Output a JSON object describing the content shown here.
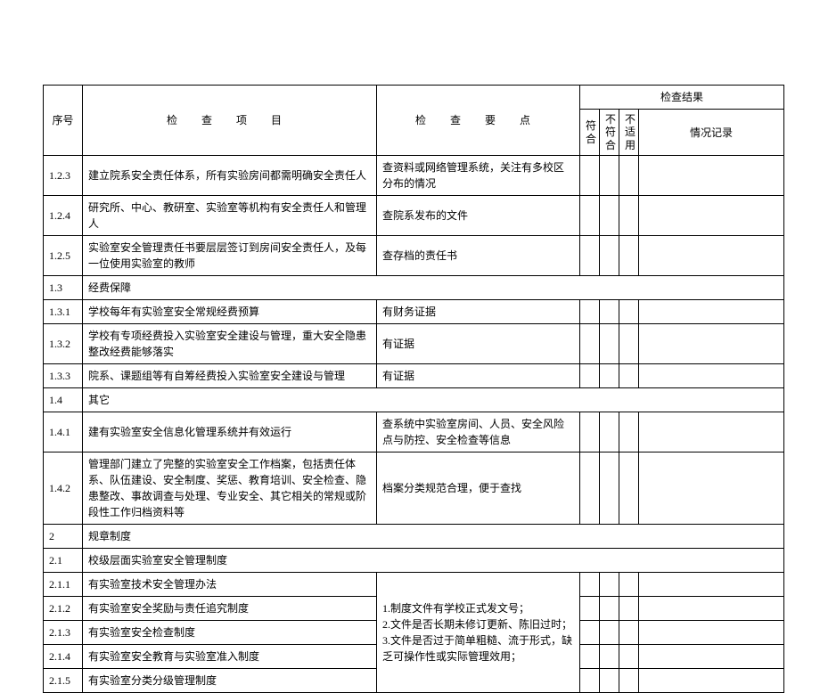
{
  "headers": {
    "num": "序号",
    "item": "检  查  项  目",
    "point": "检  查  要  点",
    "result": "检查结果",
    "conform": "符合",
    "notConform": "不符合",
    "notApply": "不适用",
    "record": "情况记录"
  },
  "rows": {
    "r1": {
      "num": "1.2.3",
      "item": "建立院系安全责任体系，所有实验房间都需明确安全责任人",
      "point": "查资料或网络管理系统，关注有多校区分布的情况"
    },
    "r2": {
      "num": "1.2.4",
      "item": "研究所、中心、教研室、实验室等机构有安全责任人和管理人",
      "point": "查院系发布的文件"
    },
    "r3": {
      "num": "1.2.5",
      "item": "实验室安全管理责任书要层层签订到房间安全责任人，及每一位使用实验室的教师",
      "point": "查存档的责任书"
    },
    "r4": {
      "num": "1.3",
      "item": "经费保障"
    },
    "r5": {
      "num": "1.3.1",
      "item": "学校每年有实验室安全常规经费预算",
      "point": "有财务证据"
    },
    "r6": {
      "num": "1.3.2",
      "item": "学校有专项经费投入实验室安全建设与管理，重大安全隐患整改经费能够落实",
      "point": "有证据"
    },
    "r7": {
      "num": "1.3.3",
      "item": "院系、课题组等有自筹经费投入实验室安全建设与管理",
      "point": "有证据"
    },
    "r8": {
      "num": "1.4",
      "item": "其它"
    },
    "r9": {
      "num": "1.4.1",
      "item": "建有实验室安全信息化管理系统并有效运行",
      "point": "查系统中实验室房间、人员、安全风险点与防控、安全检查等信息"
    },
    "r10": {
      "num": "1.4.2",
      "item": "管理部门建立了完整的实验室安全工作档案，包括责任体系、队伍建设、安全制度、奖惩、教育培训、安全检查、隐患整改、事故调查与处理、专业安全、其它相关的常规或阶段性工作归档资料等",
      "point": "档案分类规范合理，便于查找"
    },
    "r11": {
      "num": "2",
      "item": "规章制度"
    },
    "r12": {
      "num": "2.1",
      "item": "校级层面实验室安全管理制度"
    },
    "r13": {
      "num": "2.1.1",
      "item": "有实验室技术安全管理办法"
    },
    "r14": {
      "num": "2.1.2",
      "item": "有实验室安全奖励与责任追究制度"
    },
    "r15": {
      "num": "2.1.3",
      "item": "有实验室安全检查制度"
    },
    "r16": {
      "num": "2.1.4",
      "item": "有实验室安全教育与实验室准入制度"
    },
    "r17": {
      "num": "2.1.5",
      "item": "有实验室分类分级管理制度"
    },
    "sharedPoint": "1.制度文件有学校正式发文号；\n2.文件是否长期未修订更新、陈旧过时；\n3.文件是否过于简单粗糙、流于形式，缺乏可操作性或实际管理效用；"
  }
}
